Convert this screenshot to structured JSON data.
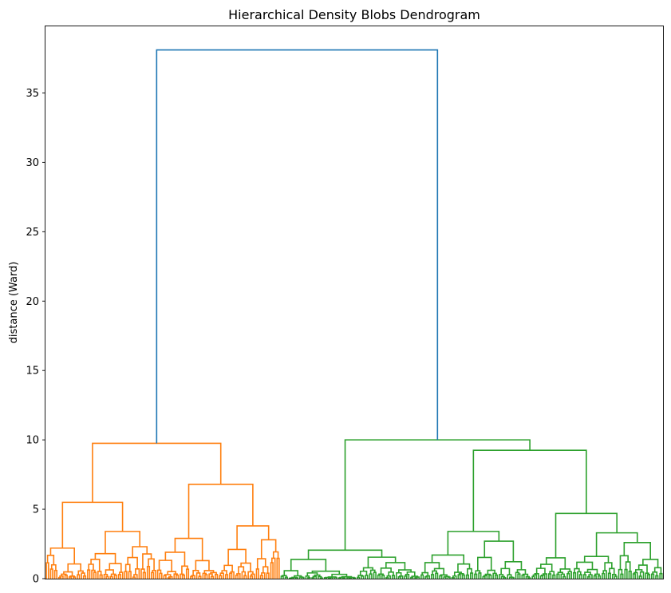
{
  "chart_data": {
    "type": "dendrogram",
    "title": "Hierarchical Density Blobs Dendrogram",
    "xlabel": "",
    "ylabel": "distance (Ward)",
    "ylim": [
      0,
      39.8
    ],
    "yticks": [
      0,
      5,
      10,
      15,
      20,
      25,
      30,
      35
    ],
    "ytick_labels": [
      "0",
      "5",
      "10",
      "15",
      "20",
      "25",
      "30",
      "35"
    ],
    "grid": false,
    "colors": {
      "above_threshold": "#1f77b4",
      "cluster_1": "#ff7f0e",
      "cluster_2": "#2ca02c"
    },
    "root_merge": {
      "height": 38.1,
      "left_cluster_height": 9.75,
      "right_cluster_height": 10.0
    },
    "clusters": [
      {
        "name": "cluster_1",
        "color": "#ff7f0e",
        "merge_height": 9.75,
        "sub_merges": [
          {
            "height": 5.5,
            "children": [
              2.2,
              3.4
            ]
          },
          {
            "height": 6.8,
            "children": [
              2.9,
              3.8
            ]
          },
          {
            "height": 3.4,
            "children": [
              1.8,
              2.3
            ]
          },
          {
            "height": 2.9,
            "children": [
              1.9,
              1.3
            ]
          },
          {
            "height": 3.8,
            "children": [
              2.1,
              2.8
            ]
          }
        ]
      },
      {
        "name": "cluster_2",
        "color": "#2ca02c",
        "merge_height": 10.0,
        "sub_merges": [
          {
            "height": 2.05,
            "children": [
              1.2,
              1.3
            ]
          },
          {
            "height": 9.25,
            "children": [
              3.4,
              4.7
            ]
          },
          {
            "height": 3.4,
            "children": [
              1.7,
              2.7
            ]
          },
          {
            "height": 4.7,
            "children": [
              1.5,
              3.3
            ]
          },
          {
            "height": 3.3,
            "children": [
              1.6,
              2.6
            ]
          }
        ]
      }
    ]
  }
}
